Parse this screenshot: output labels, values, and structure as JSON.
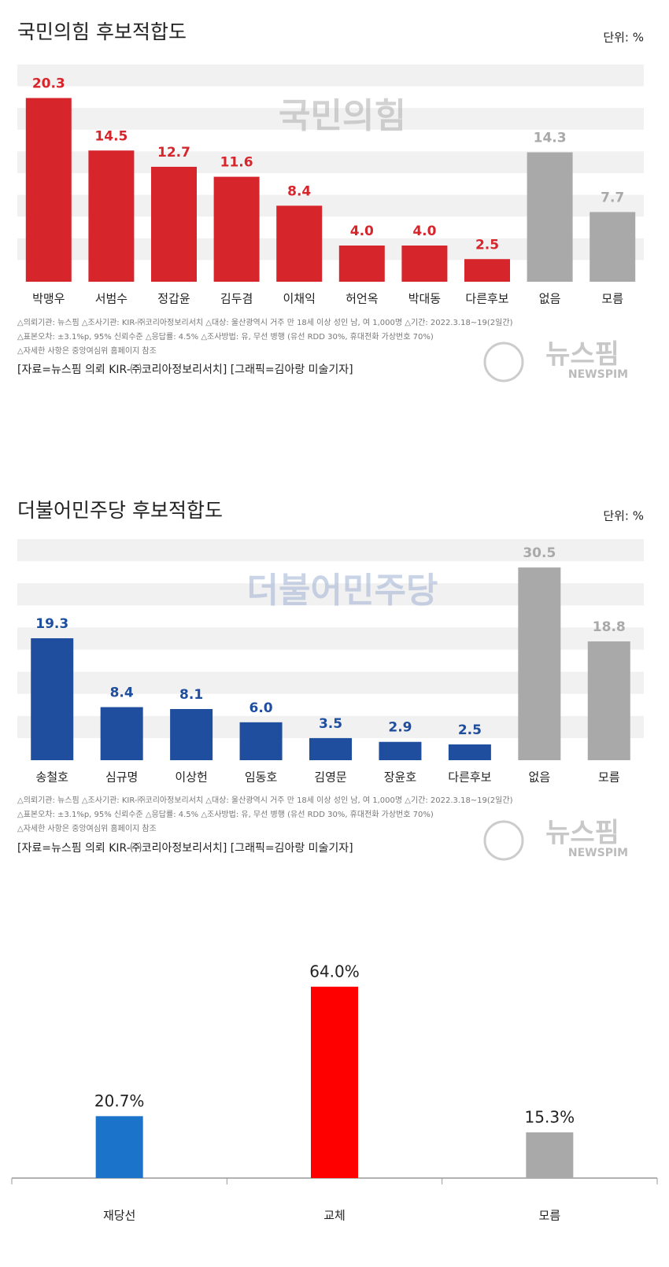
{
  "chart_data": [
    {
      "type": "bar",
      "title": "국민의힘 후보적합도",
      "unit": "단위: %",
      "watermark": "국민의힘",
      "categories": [
        "박맹우",
        "서범수",
        "정갑윤",
        "김두겸",
        "이채익",
        "허언옥",
        "박대동",
        "다른후보",
        "없음",
        "모름"
      ],
      "values": [
        20.3,
        14.5,
        12.7,
        11.6,
        8.4,
        4.0,
        4.0,
        2.5,
        14.3,
        7.7
      ],
      "value_labels": [
        "20.3",
        "14.5",
        "12.7",
        "11.6",
        "8.4",
        "4.0",
        "4.0",
        "2.5",
        "14.3",
        "7.7"
      ],
      "colors": [
        "#d7262b",
        "#d7262b",
        "#d7262b",
        "#d7262b",
        "#d7262b",
        "#d7262b",
        "#d7262b",
        "#d7262b",
        "#a9a9a9",
        "#a9a9a9"
      ],
      "colored_labels": true,
      "ylim": [
        0,
        24
      ],
      "notes": [
        "△의뢰기관: 뉴스핌 △조사기관: KIR-㈜코리아정보리서치 △대상: 울산광역시 거주 만 18세 이상 성인 남, 여 1,000명 △기간: 2022.3.18~19(2일간)",
        "△표본오차: ±3.1%p, 95% 신뢰수준 △응답률: 4.5% △조사방법: 유, 무선 병행 (유선 RDD 30%, 휴대전화 가상번호 70%)",
        "△자세한 사항은 중앙여심위 홈페이지 참조"
      ],
      "source": "[자료=뉴스핌 의뢰 KIR-㈜코리아정보리서치] [그래픽=김아랑 미술기자]",
      "logo": "뉴스핌",
      "logo_sub": "NEWSPIM"
    },
    {
      "type": "bar",
      "title": "더불어민주당 후보적합도",
      "unit": "단위: %",
      "watermark": "더불어민주당",
      "categories": [
        "송철호",
        "심규명",
        "이상헌",
        "임동호",
        "김영문",
        "장윤호",
        "다른후보",
        "없음",
        "모름"
      ],
      "values": [
        19.3,
        8.4,
        8.1,
        6.0,
        3.5,
        2.9,
        2.5,
        30.5,
        18.8
      ],
      "value_labels": [
        "19.3",
        "8.4",
        "8.1",
        "6.0",
        "3.5",
        "2.9",
        "2.5",
        "30.5",
        "18.8"
      ],
      "colors": [
        "#1f4e9e",
        "#1f4e9e",
        "#1f4e9e",
        "#1f4e9e",
        "#1f4e9e",
        "#1f4e9e",
        "#1f4e9e",
        "#a9a9a9",
        "#a9a9a9"
      ],
      "colored_labels": true,
      "ylim": [
        0,
        35
      ],
      "notes": [
        "△의뢰기관: 뉴스핌 △조사기관: KIR-㈜코리아정보리서치 △대상: 울산광역시 거주 만 18세 이상 성인 남, 여 1,000명 △기간: 2022.3.18~19(2일간)",
        "△표본오차: ±3.1%p, 95% 신뢰수준 △응답률: 4.5% △조사방법: 유, 무선 병행 (유선 RDD 30%, 휴대전화 가상번호 70%)",
        "△자세한 사항은 중앙여심위 홈페이지 참조"
      ],
      "source": "[자료=뉴스핌 의뢰 KIR-㈜코리아정보리서치] [그래픽=김아랑 미술기자]",
      "logo": "뉴스핌",
      "logo_sub": "NEWSPIM"
    },
    {
      "type": "bar",
      "categories": [
        "재당선",
        "교체",
        "모름"
      ],
      "values": [
        20.7,
        64.0,
        15.3
      ],
      "value_labels": [
        "20.7%",
        "64.0%",
        "15.3%"
      ],
      "colors": [
        "#1b74c9",
        "#ff0000",
        "#a9a9a9"
      ],
      "colored_labels": false,
      "ylim": [
        0,
        70
      ]
    }
  ]
}
